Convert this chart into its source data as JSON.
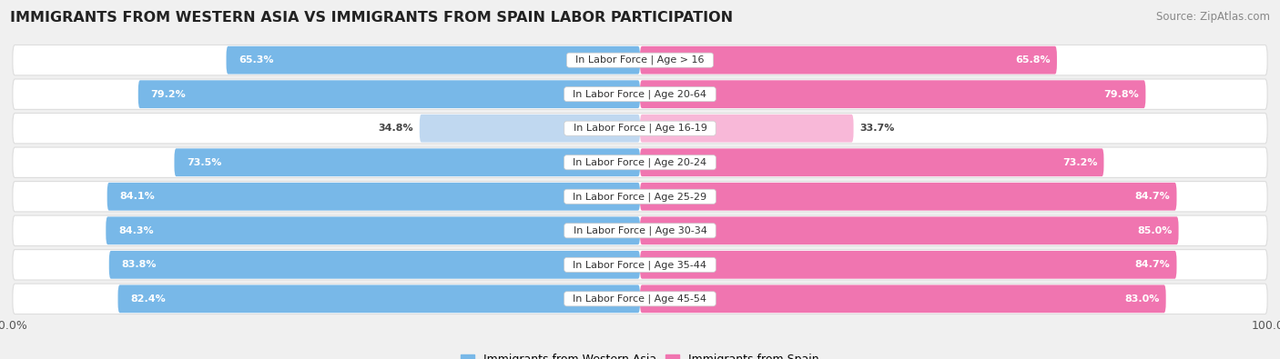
{
  "title": "IMMIGRANTS FROM WESTERN ASIA VS IMMIGRANTS FROM SPAIN LABOR PARTICIPATION",
  "source": "Source: ZipAtlas.com",
  "categories": [
    "In Labor Force | Age > 16",
    "In Labor Force | Age 20-64",
    "In Labor Force | Age 16-19",
    "In Labor Force | Age 20-24",
    "In Labor Force | Age 25-29",
    "In Labor Force | Age 30-34",
    "In Labor Force | Age 35-44",
    "In Labor Force | Age 45-54"
  ],
  "western_asia_values": [
    65.3,
    79.2,
    34.8,
    73.5,
    84.1,
    84.3,
    83.8,
    82.4
  ],
  "spain_values": [
    65.8,
    79.8,
    33.7,
    73.2,
    84.7,
    85.0,
    84.7,
    83.0
  ],
  "western_asia_color": "#78B8E8",
  "western_asia_color_light": "#C0D8F0",
  "spain_color": "#F075B0",
  "spain_color_light": "#F8B8D8",
  "bg_color": "#F0F0F0",
  "row_bg": "#FFFFFF",
  "row_outline": "#DDDDDD",
  "legend_western_asia": "Immigrants from Western Asia",
  "legend_spain": "Immigrants from Spain",
  "title_fontsize": 11.5,
  "label_fontsize": 8,
  "value_fontsize": 8,
  "source_fontsize": 8.5,
  "threshold": 50
}
